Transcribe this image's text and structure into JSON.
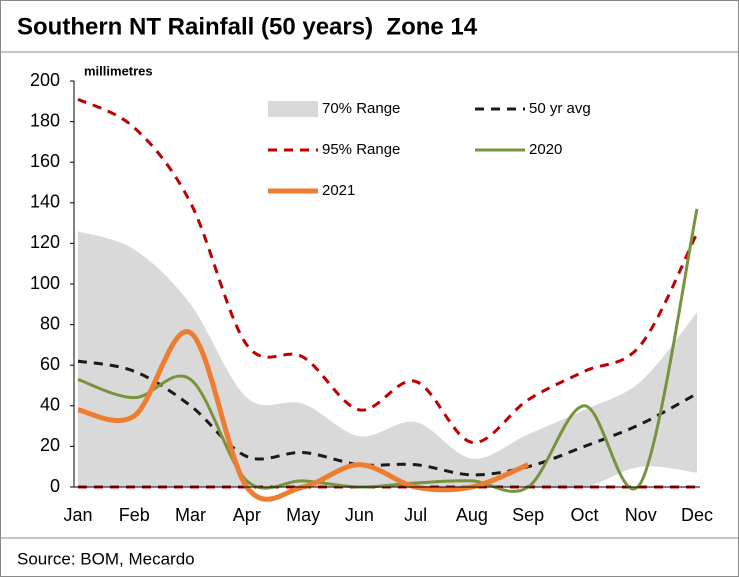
{
  "chart_data": {
    "type": "line",
    "title": "Southern NT Rainfall (50 years)  Zone 14",
    "y_label": "millimetres",
    "source": "Source: BOM, Mecardo",
    "categories": [
      "Jan",
      "Feb",
      "Mar",
      "Apr",
      "May",
      "Jun",
      "Jul",
      "Aug",
      "Sep",
      "Oct",
      "Nov",
      "Dec"
    ],
    "ylim": [
      0,
      200
    ],
    "yticks": [
      0,
      20,
      40,
      60,
      80,
      100,
      120,
      140,
      160,
      180,
      200
    ],
    "grid": false,
    "series": [
      {
        "name": "70% Range",
        "type": "area",
        "color": "#d9d9d9",
        "values": [
          126,
          117,
          90,
          44,
          41,
          25,
          32,
          14,
          26,
          38,
          52,
          86
        ],
        "lower": [
          0,
          0,
          0,
          0,
          0,
          0,
          0,
          0,
          0,
          0,
          10,
          7
        ]
      },
      {
        "name": "50 yr avg",
        "type": "line",
        "dashed": true,
        "color": "#1a1a1a",
        "values": [
          62,
          57,
          40,
          15,
          17,
          11,
          11,
          6,
          10,
          20,
          31,
          46
        ]
      },
      {
        "name": "95% Range",
        "type": "line",
        "dashed": true,
        "color": "#c00000",
        "values": [
          191,
          177,
          140,
          70,
          64,
          38,
          52,
          22,
          43,
          57,
          70,
          125
        ],
        "lower": [
          0,
          0,
          0,
          0,
          0,
          0,
          0,
          0,
          0,
          0,
          0,
          0
        ]
      },
      {
        "name": "2020",
        "type": "line",
        "dashed": false,
        "color": "#77933c",
        "values": [
          53,
          44,
          53,
          3,
          3,
          0,
          2,
          3,
          0,
          40,
          2,
          137
        ]
      },
      {
        "name": "2021",
        "type": "line",
        "dashed": false,
        "thick": true,
        "color": "#ed7d31",
        "values": [
          38,
          35,
          76,
          0,
          0,
          11,
          0,
          0,
          11,
          null,
          null,
          null
        ]
      }
    ]
  }
}
